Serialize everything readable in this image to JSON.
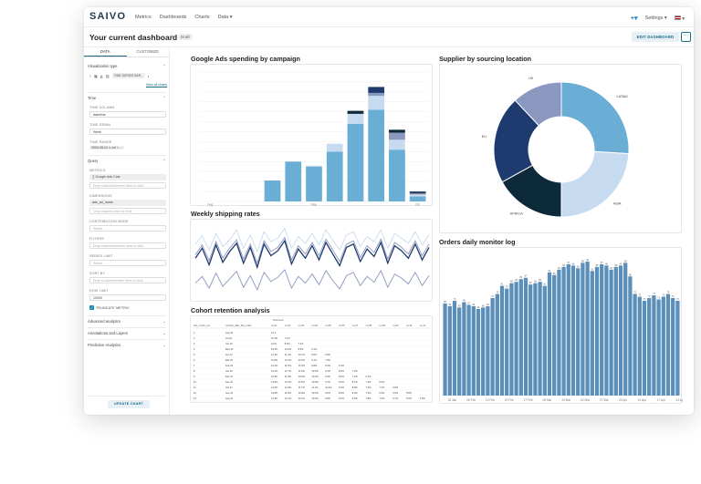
{
  "app": {
    "logo": "SAIVO",
    "nav": [
      "Metrics",
      "Dashboards",
      "Charts",
      "Data ▾"
    ],
    "nav_right": {
      "settings": "Settings ▾",
      "new_icon": "plus-icon",
      "language_icon": "us-flag-icon"
    }
  },
  "header": {
    "title": "Your current dashboard",
    "badge": "Draft",
    "edit_label": "EDIT DASHBOARD",
    "more_label": "···"
  },
  "sidebar": {
    "tabs": [
      "DATA",
      "CUSTOMIZE"
    ],
    "visualization_type": "Visualization type",
    "viz_chip": "TIME-SERIES BAR...",
    "view_all": "View all charts",
    "time_section": "Time",
    "time_column_label": "TIME COLUMN",
    "time_column_value": "datetime",
    "time_grain_label": "TIME GRAIN",
    "time_grain_value": "Week",
    "time_range_label": "TIME RANGE",
    "time_range_value": "2003-06-01 ≤ col < ...",
    "query_section": "Query",
    "metrics_label": "METRICS",
    "metric_value": "∑ Google Ads Cost",
    "metric_drop": "Drop columns/metrics here or click",
    "dimensions_label": "DIMENSIONS",
    "dimension_value": "ads_ad_name",
    "dimension_drop": "Drop columns here or click",
    "contribution_label": "CONTRIBUTION MODE",
    "contribution_value": "Select ...",
    "filters_label": "FILTERS",
    "filters_drop": "Drop columns/metrics here or click",
    "series_limit_label": "SERIES LIMIT",
    "series_limit_value": "Select ...",
    "sort_by_label": "SORT BY",
    "sort_by_value": "Drop a column/metric here or click",
    "row_limit_label": "ROW LIMIT",
    "row_limit_value": "10000",
    "truncate_label": "TRUNCATE METRIC",
    "advanced_analytics": "Advanced analytics",
    "annotations": "Annotations and Layers",
    "predictive": "Predictive Analytics",
    "update_label": "UPDATE CHART"
  },
  "cards": {
    "ads": "Google Ads spending by campaign",
    "shipping": "Weekly shipping rates",
    "cohort": "Cohort retention analysis",
    "supplier": "Supplier by sourcing location",
    "orders": "Orders daily monitor log"
  },
  "colors": {
    "light_blue": "#6aaed6",
    "pale_blue": "#c6dbef",
    "navy": "#1f3a6e",
    "dark_teal": "#0d2a3a",
    "slate_purple": "#8a97bf",
    "steel": "#5b8fb9"
  },
  "chart_data": [
    {
      "type": "bar",
      "title": "Google Ads spending by campaign",
      "stacked": true,
      "x_tick_labels": [
        "Aug",
        "May",
        "Oct"
      ],
      "series": [
        {
          "color": "#6aaed6",
          "values": [
            0,
            0,
            0,
            21,
            40,
            35,
            50,
            78,
            92,
            52,
            5
          ]
        },
        {
          "color": "#c6dbef",
          "values": [
            0,
            0,
            0,
            0,
            0,
            1,
            8,
            10,
            14,
            10,
            2
          ]
        },
        {
          "color": "#8a97bf",
          "values": [
            0,
            0,
            0,
            0,
            0,
            0,
            0,
            0,
            3,
            7,
            1
          ]
        },
        {
          "color": "#0d2a3a",
          "values": [
            0,
            0,
            0,
            0,
            0,
            0,
            0,
            3,
            0,
            3,
            1
          ]
        },
        {
          "color": "#1f3a6e",
          "values": [
            0,
            0,
            0,
            0,
            0,
            0,
            0,
            0,
            6,
            0,
            1
          ]
        }
      ]
    },
    {
      "type": "pie",
      "title": "Supplier by sourcing location",
      "donut": true,
      "slices": [
        {
          "label": "LATAM",
          "value": 26,
          "color": "#6aaed6"
        },
        {
          "label": "ASIA",
          "value": 24,
          "color": "#c6dbef"
        },
        {
          "label": "AFRICA",
          "value": 17,
          "color": "#0d2a3a"
        },
        {
          "label": "EU",
          "value": 21,
          "color": "#1f3a6e"
        },
        {
          "label": "UK",
          "value": 12,
          "color": "#8a97bf"
        }
      ]
    },
    {
      "type": "line",
      "title": "Weekly shipping rates",
      "series": [
        {
          "color": "#c6dbef",
          "values": [
            75,
            85,
            68,
            88,
            72,
            80,
            92,
            70,
            86,
            66,
            90,
            78,
            82,
            94,
            70,
            84,
            76,
            88,
            74,
            92,
            80,
            68,
            86,
            90,
            72,
            84,
            78,
            92,
            70,
            88,
            82,
            76,
            90,
            74,
            86
          ]
        },
        {
          "color": "#8a97bf",
          "values": [
            62,
            74,
            55,
            78,
            58,
            70,
            80,
            57,
            75,
            52,
            79,
            66,
            71,
            83,
            56,
            73,
            63,
            77,
            61,
            81,
            68,
            54,
            75,
            79,
            59,
            73,
            65,
            81,
            57,
            77,
            71,
            63,
            79,
            61,
            75
          ]
        },
        {
          "color": "#1f3a6e",
          "values": [
            58,
            70,
            50,
            74,
            53,
            66,
            76,
            52,
            71,
            47,
            75,
            61,
            67,
            79,
            51,
            69,
            58,
            73,
            56,
            77,
            63,
            49,
            71,
            75,
            54,
            69,
            60,
            77,
            52,
            73,
            67,
            58,
            75,
            56,
            71
          ]
        },
        {
          "color": "#8a97bf",
          "values": [
            28,
            36,
            22,
            40,
            24,
            33,
            42,
            23,
            37,
            20,
            41,
            30,
            35,
            44,
            22,
            36,
            28,
            39,
            26,
            43,
            31,
            21,
            37,
            41,
            25,
            36,
            29,
            43,
            23,
            39,
            34,
            27,
            41,
            25,
            37
          ]
        }
      ]
    },
    {
      "type": "bar",
      "title": "Orders daily monitor log",
      "x_tick_labels": [
        "30 Jan",
        "06 Feb",
        "13 Feb",
        "20 Feb",
        "27 Feb",
        "06 Mar",
        "13 Mar",
        "20 Mar",
        "27 Mar",
        "03 Apr",
        "10 Apr",
        "17 Apr",
        "24 Apr"
      ],
      "values": [
        68,
        66,
        70,
        65,
        69,
        67,
        66,
        64,
        65,
        66,
        72,
        75,
        81,
        79,
        83,
        84,
        86,
        87,
        82,
        83,
        84,
        81,
        91,
        89,
        93,
        95,
        97,
        96,
        94,
        98,
        99,
        92,
        95,
        97,
        96,
        93,
        95,
        96,
        98,
        88,
        75,
        73,
        70,
        72,
        74,
        71,
        73,
        75,
        72,
        70
      ]
    }
  ],
  "cohort": {
    "group_header": "Retention",
    "columns": [
      "first_month_cal",
      "number_after_first_order",
      "m+01",
      "m+02",
      "m+03",
      "m+04",
      "m+05",
      "m+06",
      "m+07",
      "m+08",
      "m+09",
      "m+10",
      "m+11",
      "m+12"
    ],
    "rows": [
      [
        "1",
        "Aug 22",
        "12.1",
        "",
        "",
        "",
        "",
        "",
        "",
        "",
        "",
        "",
        "",
        ""
      ],
      [
        "2",
        "Jul 22",
        "11.2%",
        "7.1%",
        "",
        "",
        "",
        "",
        "",
        "",
        "",
        "",
        "",
        ""
      ],
      [
        "3",
        "Jun 22",
        "9.2%",
        "8.6%",
        "7.1%",
        "",
        "",
        "",
        "",
        "",
        "",
        "",
        "",
        ""
      ],
      [
        "4",
        "May 22",
        "10.3%",
        "10.0%",
        "8.5%",
        "6.1%",
        "",
        "",
        "",
        "",
        "",
        "",
        "",
        ""
      ],
      [
        "5",
        "Apr 22",
        "12.4%",
        "11.2%",
        "10.7%",
        "8.0%",
        "6.9%",
        "",
        "",
        "",
        "",
        "",
        "",
        ""
      ],
      [
        "6",
        "Mar 22",
        "11.8%",
        "12.4%",
        "11.0%",
        "9.1%",
        "7.5%",
        "",
        "",
        "",
        "",
        "",
        "",
        ""
      ],
      [
        "7",
        "Feb 22",
        "13.1%",
        "11.5%",
        "10.4%",
        "9.8%",
        "8.2%",
        "6.4%",
        "",
        "",
        "",
        "",
        "",
        ""
      ],
      [
        "8",
        "Jan 22",
        "14.2%",
        "12.7%",
        "11.9%",
        "10.5%",
        "9.1%",
        "8.0%",
        "7.3%",
        "",
        "",
        "",
        "",
        ""
      ],
      [
        "9",
        "Dec 21",
        "12.5%",
        "11.8%",
        "10.9%",
        "10.0%",
        "9.4%",
        "8.6%",
        "7.2%",
        "6.1%",
        "",
        "",
        "",
        ""
      ],
      [
        "10",
        "Nov 21",
        "13.6%",
        "12.3%",
        "11.5%",
        "10.8%",
        "9.7%",
        "9.0%",
        "8.1%",
        "7.4%",
        "6.6%",
        "",
        "",
        ""
      ],
      [
        "11",
        "Oct 21",
        "14.0%",
        "12.9%",
        "11.7%",
        "11.1%",
        "10.2%",
        "9.3%",
        "8.8%",
        "7.9%",
        "7.1%",
        "6.5%",
        "",
        ""
      ],
      [
        "12",
        "Sep 21",
        "12.8%",
        "11.6%",
        "10.9%",
        "10.3%",
        "9.6%",
        "8.8%",
        "8.0%",
        "7.6%",
        "6.9%",
        "6.2%",
        "5.8%",
        ""
      ],
      [
        "13",
        "Aug 21",
        "13.3%",
        "12.1%",
        "11.4%",
        "10.6%",
        "9.9%",
        "9.2%",
        "8.5%",
        "7.8%",
        "7.2%",
        "6.7%",
        "6.0%",
        "5.5%"
      ]
    ]
  }
}
